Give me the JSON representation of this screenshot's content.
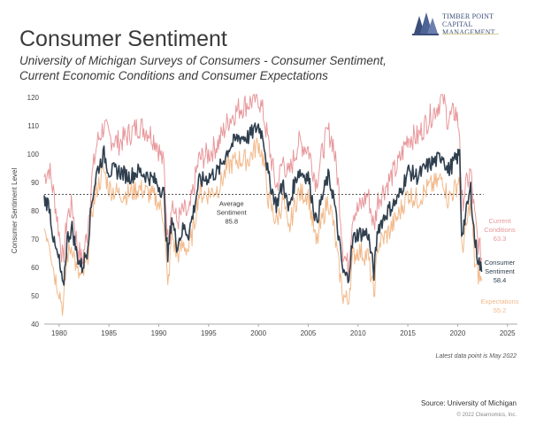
{
  "header": {
    "title": "Consumer Sentiment",
    "subtitle": "University of Michigan Surveys of Consumers - Consumer Sentiment, Current Economic Conditions and Consumer Expectations",
    "brand_line1": "Timber Point",
    "brand_line2": "Capital Management"
  },
  "footer": {
    "latest_note": "Latest data point is May 2022",
    "source": "Source: University of Michigan",
    "copyright": "© 2022 Clearnomics, Inc."
  },
  "colors": {
    "current_conditions": "#e8979b",
    "consumer_sentiment": "#2f3f4e",
    "expectations": "#f2b98a",
    "average_line": "#555555",
    "axis_text": "#444444"
  },
  "chart_data": {
    "type": "line",
    "ylabel": "Consumer Sentiment Level",
    "xlim": [
      1978.5,
      2026
    ],
    "ylim": [
      40,
      120
    ],
    "yticks": [
      40,
      50,
      60,
      70,
      80,
      90,
      100,
      110,
      120
    ],
    "xticks": [
      1980,
      1985,
      1990,
      1995,
      2000,
      2005,
      2010,
      2015,
      2020,
      2025
    ],
    "average": {
      "value": 85.8,
      "label": "Average Sentiment",
      "value_label": "85.8"
    },
    "series": [
      {
        "name": "Current Conditions",
        "key": "current_conditions",
        "end_value": "63.3",
        "points": [
          [
            1978.5,
            92
          ],
          [
            1979,
            95
          ],
          [
            1979.5,
            85
          ],
          [
            1980,
            72
          ],
          [
            1980.4,
            62
          ],
          [
            1980.8,
            78
          ],
          [
            1981.3,
            82
          ],
          [
            1981.8,
            68
          ],
          [
            1982.3,
            62
          ],
          [
            1982.8,
            72
          ],
          [
            1983.3,
            92
          ],
          [
            1983.8,
            104
          ],
          [
            1984.5,
            110
          ],
          [
            1985,
            106
          ],
          [
            1986,
            104
          ],
          [
            1987,
            107
          ],
          [
            1988,
            110
          ],
          [
            1989,
            108
          ],
          [
            1989.8,
            104
          ],
          [
            1990.5,
            96
          ],
          [
            1990.9,
            70
          ],
          [
            1991.3,
            84
          ],
          [
            1991.8,
            76
          ],
          [
            1992.5,
            80
          ],
          [
            1993,
            78
          ],
          [
            1993.5,
            88
          ],
          [
            1994,
            98
          ],
          [
            1995,
            100
          ],
          [
            1996,
            104
          ],
          [
            1997,
            112
          ],
          [
            1998,
            116
          ],
          [
            1999,
            118
          ],
          [
            2000,
            120
          ],
          [
            2000.5,
            114
          ],
          [
            2001,
            104
          ],
          [
            2001.8,
            88
          ],
          [
            2002.5,
            98
          ],
          [
            2003,
            92
          ],
          [
            2003.5,
            98
          ],
          [
            2004,
            104
          ],
          [
            2005,
            102
          ],
          [
            2005.8,
            90
          ],
          [
            2006.5,
            102
          ],
          [
            2007,
            108
          ],
          [
            2007.5,
            104
          ],
          [
            2008,
            90
          ],
          [
            2008.5,
            66
          ],
          [
            2009,
            60
          ],
          [
            2009.5,
            80
          ],
          [
            2010,
            80
          ],
          [
            2011,
            86
          ],
          [
            2011.6,
            74
          ],
          [
            2012,
            84
          ],
          [
            2013,
            90
          ],
          [
            2014,
            96
          ],
          [
            2015,
            106
          ],
          [
            2016,
            106
          ],
          [
            2017,
            112
          ],
          [
            2018,
            117
          ],
          [
            2018.5,
            121
          ],
          [
            2019,
            112
          ],
          [
            2019.8,
            115
          ],
          [
            2020.2,
            108
          ],
          [
            2020.4,
            82
          ],
          [
            2020.8,
            88
          ],
          [
            2021.3,
            94
          ],
          [
            2021.7,
            78
          ],
          [
            2022,
            70
          ],
          [
            2022.4,
            63.3
          ]
        ]
      },
      {
        "name": "Consumer Sentiment",
        "key": "consumer_sentiment",
        "end_value": "58.4",
        "points": [
          [
            1978.5,
            84
          ],
          [
            1979,
            82
          ],
          [
            1979.5,
            68
          ],
          [
            1980,
            62
          ],
          [
            1980.4,
            52
          ],
          [
            1980.8,
            70
          ],
          [
            1981.3,
            74
          ],
          [
            1981.8,
            64
          ],
          [
            1982.3,
            60
          ],
          [
            1982.8,
            66
          ],
          [
            1983.3,
            84
          ],
          [
            1983.8,
            94
          ],
          [
            1984.5,
            100
          ],
          [
            1985,
            94
          ],
          [
            1986,
            94
          ],
          [
            1987,
            92
          ],
          [
            1988,
            94
          ],
          [
            1989,
            92
          ],
          [
            1989.8,
            90
          ],
          [
            1990.5,
            86
          ],
          [
            1990.9,
            63
          ],
          [
            1991.3,
            78
          ],
          [
            1991.8,
            68
          ],
          [
            1992.5,
            74
          ],
          [
            1993,
            72
          ],
          [
            1993.5,
            80
          ],
          [
            1994,
            90
          ],
          [
            1995,
            92
          ],
          [
            1996,
            94
          ],
          [
            1997,
            102
          ],
          [
            1998,
            106
          ],
          [
            1999,
            106
          ],
          [
            2000,
            110
          ],
          [
            2000.5,
            106
          ],
          [
            2001,
            92
          ],
          [
            2001.8,
            82
          ],
          [
            2002.5,
            90
          ],
          [
            2003,
            80
          ],
          [
            2003.5,
            88
          ],
          [
            2004,
            94
          ],
          [
            2005,
            92
          ],
          [
            2005.8,
            76
          ],
          [
            2006.5,
            86
          ],
          [
            2007,
            92
          ],
          [
            2007.5,
            86
          ],
          [
            2008,
            72
          ],
          [
            2008.5,
            58
          ],
          [
            2009,
            56
          ],
          [
            2009.5,
            70
          ],
          [
            2010,
            72
          ],
          [
            2011,
            72
          ],
          [
            2011.6,
            58
          ],
          [
            2012,
            74
          ],
          [
            2013,
            80
          ],
          [
            2014,
            84
          ],
          [
            2015,
            94
          ],
          [
            2016,
            92
          ],
          [
            2017,
            96
          ],
          [
            2018,
            98
          ],
          [
            2018.5,
            100
          ],
          [
            2019,
            94
          ],
          [
            2019.8,
            98
          ],
          [
            2020.2,
            100
          ],
          [
            2020.4,
            72
          ],
          [
            2020.8,
            78
          ],
          [
            2021.3,
            88
          ],
          [
            2021.7,
            70
          ],
          [
            2022,
            64
          ],
          [
            2022.4,
            58.4
          ]
        ]
      },
      {
        "name": "Expectations",
        "key": "expectations",
        "end_value": "55.2",
        "points": [
          [
            1978.5,
            74
          ],
          [
            1979,
            70
          ],
          [
            1979.5,
            58
          ],
          [
            1980,
            52
          ],
          [
            1980.4,
            45
          ],
          [
            1980.8,
            64
          ],
          [
            1981.3,
            68
          ],
          [
            1981.8,
            58
          ],
          [
            1982.3,
            56
          ],
          [
            1982.8,
            62
          ],
          [
            1983.3,
            80
          ],
          [
            1983.8,
            88
          ],
          [
            1984.5,
            94
          ],
          [
            1985,
            88
          ],
          [
            1986,
            86
          ],
          [
            1987,
            86
          ],
          [
            1988,
            88
          ],
          [
            1989,
            86
          ],
          [
            1989.8,
            84
          ],
          [
            1990.5,
            78
          ],
          [
            1990.9,
            52
          ],
          [
            1991.3,
            72
          ],
          [
            1991.8,
            64
          ],
          [
            1992.5,
            68
          ],
          [
            1993,
            66
          ],
          [
            1993.5,
            74
          ],
          [
            1994,
            86
          ],
          [
            1995,
            86
          ],
          [
            1996,
            88
          ],
          [
            1997,
            96
          ],
          [
            1998,
            98
          ],
          [
            1999,
            98
          ],
          [
            2000,
            104
          ],
          [
            2000.5,
            98
          ],
          [
            2001,
            84
          ],
          [
            2001.8,
            76
          ],
          [
            2002.5,
            84
          ],
          [
            2003,
            72
          ],
          [
            2003.5,
            80
          ],
          [
            2004,
            86
          ],
          [
            2005,
            86
          ],
          [
            2005.8,
            68
          ],
          [
            2006.5,
            78
          ],
          [
            2007,
            84
          ],
          [
            2007.5,
            76
          ],
          [
            2008,
            62
          ],
          [
            2008.5,
            50
          ],
          [
            2009,
            48
          ],
          [
            2009.5,
            64
          ],
          [
            2010,
            66
          ],
          [
            2011,
            64
          ],
          [
            2011.6,
            50
          ],
          [
            2012,
            68
          ],
          [
            2013,
            72
          ],
          [
            2014,
            78
          ],
          [
            2015,
            86
          ],
          [
            2016,
            84
          ],
          [
            2017,
            88
          ],
          [
            2018,
            90
          ],
          [
            2018.5,
            92
          ],
          [
            2019,
            84
          ],
          [
            2019.8,
            88
          ],
          [
            2020.2,
            92
          ],
          [
            2020.4,
            66
          ],
          [
            2020.8,
            72
          ],
          [
            2021.3,
            84
          ],
          [
            2021.7,
            62
          ],
          [
            2022,
            58
          ],
          [
            2022.4,
            55.2
          ]
        ]
      }
    ]
  }
}
